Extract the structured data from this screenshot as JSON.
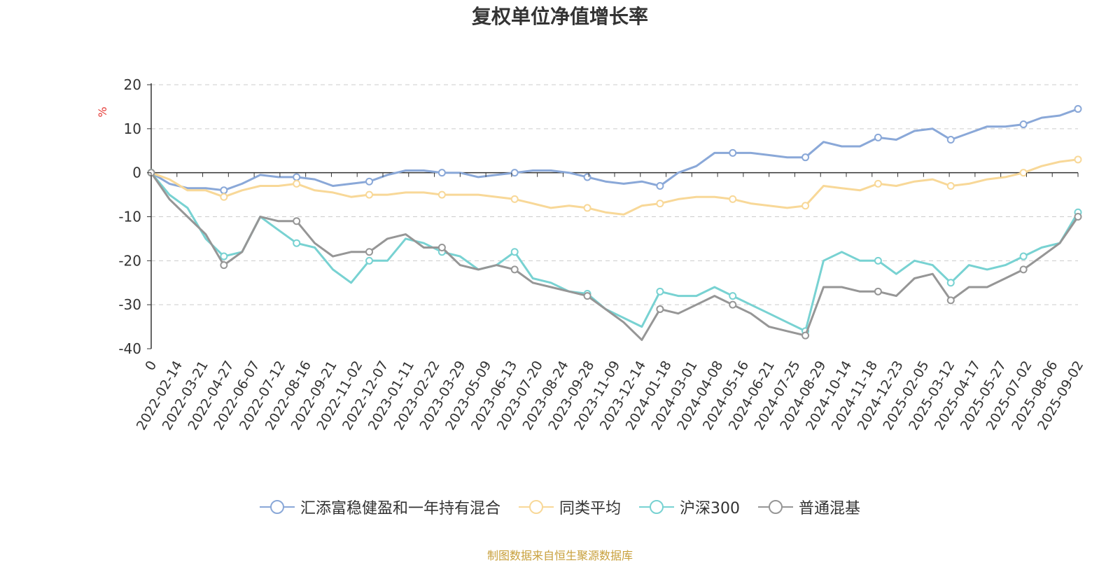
{
  "chart_data": {
    "type": "line",
    "title": "复权单位净值增长率",
    "ylabel": "%",
    "ylim": [
      -40,
      20
    ],
    "yticks": [
      20,
      10,
      0,
      -10,
      -20,
      -30,
      -40
    ],
    "x_tick_labels": [
      "0",
      "2022-02-14",
      "2022-03-21",
      "2022-04-27",
      "2022-06-07",
      "2022-07-12",
      "2022-08-16",
      "2022-09-21",
      "2022-11-02",
      "2022-12-07",
      "2023-01-11",
      "2023-02-22",
      "2023-03-29",
      "2023-05-09",
      "2023-06-13",
      "2023-07-20",
      "2023-08-24",
      "2023-09-28",
      "2023-11-09",
      "2023-12-14",
      "2024-01-18",
      "2024-03-01",
      "2024-04-08",
      "2024-05-16",
      "2024-06-21",
      "2024-07-25",
      "2024-08-29",
      "2024-10-14",
      "2024-11-18",
      "2024-12-23",
      "2025-02-05",
      "2025-03-12",
      "2025-04-17",
      "2025-05-27",
      "2025-07-02",
      "2025-08-06",
      "2025-09-02"
    ],
    "grid": true,
    "legend_position": "bottom",
    "series": [
      {
        "name": "汇添富稳健盈和一年持有混合",
        "color": "#8aa8d8",
        "values": [
          0,
          -2.5,
          -3.5,
          -3.5,
          -4,
          -2.5,
          -0.5,
          -1,
          -1,
          -1.5,
          -3,
          -2.5,
          -2,
          -0.5,
          0.5,
          0.5,
          0,
          0,
          -1,
          -0.5,
          0,
          0.5,
          0.5,
          0,
          -1,
          -2,
          -2.5,
          -2,
          -3,
          0,
          1.5,
          4.5,
          4.5,
          4.5,
          4,
          3.5,
          3.5,
          7,
          6,
          6,
          8,
          7.5,
          9.5,
          10,
          7.5,
          9,
          10.5,
          10.5,
          11,
          12.5,
          13,
          14.5
        ]
      },
      {
        "name": "同类平均",
        "color": "#f8d898",
        "values": [
          0,
          -1.5,
          -4,
          -4,
          -5.5,
          -4,
          -3,
          -3,
          -2.5,
          -4,
          -4.5,
          -5.5,
          -5,
          -5,
          -4.5,
          -4.5,
          -5,
          -5,
          -5,
          -5.5,
          -6,
          -7,
          -8,
          -7.5,
          -8,
          -9,
          -9.5,
          -7.5,
          -7,
          -6,
          -5.5,
          -5.5,
          -6,
          -7,
          -7.5,
          -8,
          -7.5,
          -3,
          -3.5,
          -4,
          -2.5,
          -3,
          -2,
          -1.5,
          -3,
          -2.5,
          -1.5,
          -1,
          0,
          1.5,
          2.5,
          3
        ]
      },
      {
        "name": "沪深300",
        "color": "#78d2d2",
        "values": [
          0,
          -5,
          -8,
          -15,
          -19,
          -18,
          -10,
          -13,
          -16,
          -17,
          -22,
          -25,
          -20,
          -20,
          -15,
          -16,
          -18,
          -19,
          -22,
          -21,
          -18,
          -24,
          -25,
          -27,
          -27.5,
          -31,
          -33,
          -35,
          -27,
          -28,
          -28,
          -26,
          -28,
          -30,
          -32,
          -34,
          -36,
          -20,
          -18,
          -20,
          -20,
          -23,
          -20,
          -21,
          -25,
          -21,
          -22,
          -21,
          -19,
          -17,
          -16,
          -9
        ]
      },
      {
        "name": "普通混基",
        "color": "#969696",
        "values": [
          0,
          -6,
          -10,
          -14,
          -21,
          -18,
          -10,
          -11,
          -11,
          -16,
          -19,
          -18,
          -18,
          -15,
          -14,
          -17,
          -17,
          -21,
          -22,
          -21,
          -22,
          -25,
          -26,
          -27,
          -28,
          -31,
          -34,
          -38,
          -31,
          -32,
          -30,
          -28,
          -30,
          -32,
          -35,
          -36,
          -37,
          -26,
          -26,
          -27,
          -27,
          -28,
          -24,
          -23,
          -29,
          -26,
          -26,
          -24,
          -22,
          -19,
          -16,
          -10
        ]
      }
    ]
  },
  "source_text": "制图数据来自恒生聚源数据库"
}
